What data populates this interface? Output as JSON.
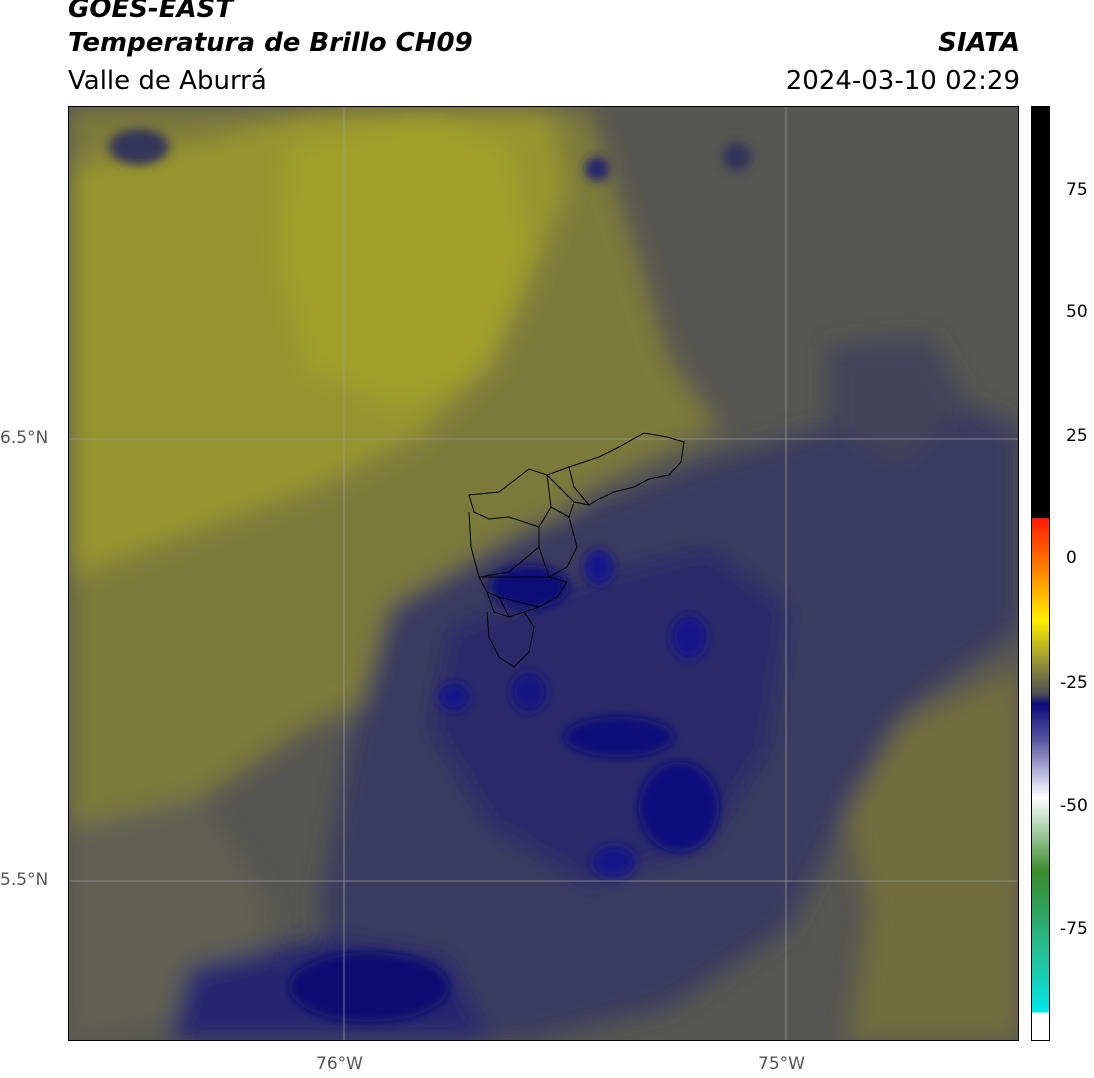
{
  "header": {
    "satellite": "GOES-EAST",
    "product": "Temperatura de Brillo CH09",
    "region": "Valle de Aburrá",
    "brand": "SIATA",
    "datetime": "2024-03-10 02:29"
  },
  "map": {
    "lat_labels": [
      "6.5°N",
      "5.5°N"
    ],
    "lon_labels": [
      "76°W",
      "75°W"
    ]
  },
  "colorbar": {
    "ticks": [
      "75",
      "50",
      "25",
      "0",
      "-25",
      "-50",
      "-75"
    ],
    "colors": {
      "black": "#000000",
      "red": "#ff2200",
      "orange": "#ff8800",
      "yellow": "#ffee00",
      "olive": "#8a8a3a",
      "navy": "#0a0a7a",
      "white": "#ffffff",
      "green": "#3a8a2a",
      "cyan": "#00e6e6"
    }
  }
}
